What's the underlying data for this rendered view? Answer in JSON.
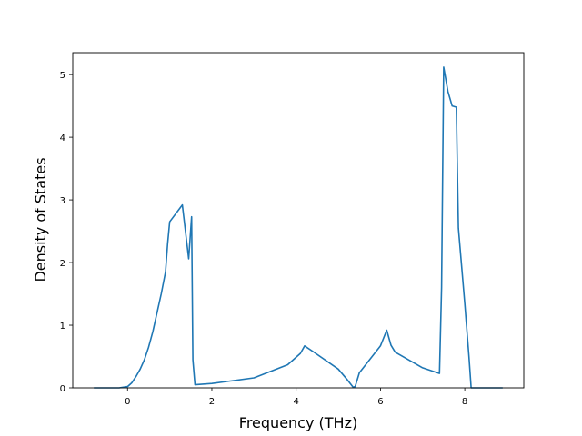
{
  "chart_data": {
    "type": "line",
    "title": "",
    "xlabel": "Frequency (THz)",
    "ylabel": "Density of States",
    "xlim": [
      -1.3,
      9.4
    ],
    "ylim": [
      0,
      5.35
    ],
    "xticks": [
      0,
      2,
      4,
      6,
      8
    ],
    "yticks": [
      0,
      1,
      2,
      3,
      4,
      5
    ],
    "grid": false,
    "legend": "none",
    "series": [
      {
        "color": "#1f77b4",
        "x": [
          -0.8,
          -0.2,
          0.0,
          0.1,
          0.2,
          0.3,
          0.4,
          0.5,
          0.6,
          0.7,
          0.8,
          0.9,
          0.95,
          1.0,
          1.3,
          1.45,
          1.52,
          1.55,
          1.6,
          2.0,
          3.0,
          3.8,
          4.1,
          4.2,
          4.4,
          5.0,
          5.2,
          5.35,
          5.4,
          5.5,
          6.0,
          6.15,
          6.25,
          6.35,
          7.0,
          7.4,
          7.45,
          7.5,
          7.6,
          7.7,
          7.8,
          7.85,
          8.0,
          8.1,
          8.15,
          8.9
        ],
        "y": [
          0,
          0,
          0.02,
          0.08,
          0.18,
          0.3,
          0.45,
          0.65,
          0.9,
          1.2,
          1.5,
          1.85,
          2.3,
          2.65,
          2.92,
          2.06,
          2.73,
          0.45,
          0.05,
          0.07,
          0.16,
          0.37,
          0.55,
          0.67,
          0.58,
          0.3,
          0.14,
          0.01,
          0.02,
          0.24,
          0.67,
          0.92,
          0.68,
          0.57,
          0.32,
          0.23,
          1.6,
          5.12,
          4.73,
          4.5,
          4.48,
          2.55,
          1.35,
          0.5,
          0.0,
          0.0
        ]
      }
    ]
  }
}
